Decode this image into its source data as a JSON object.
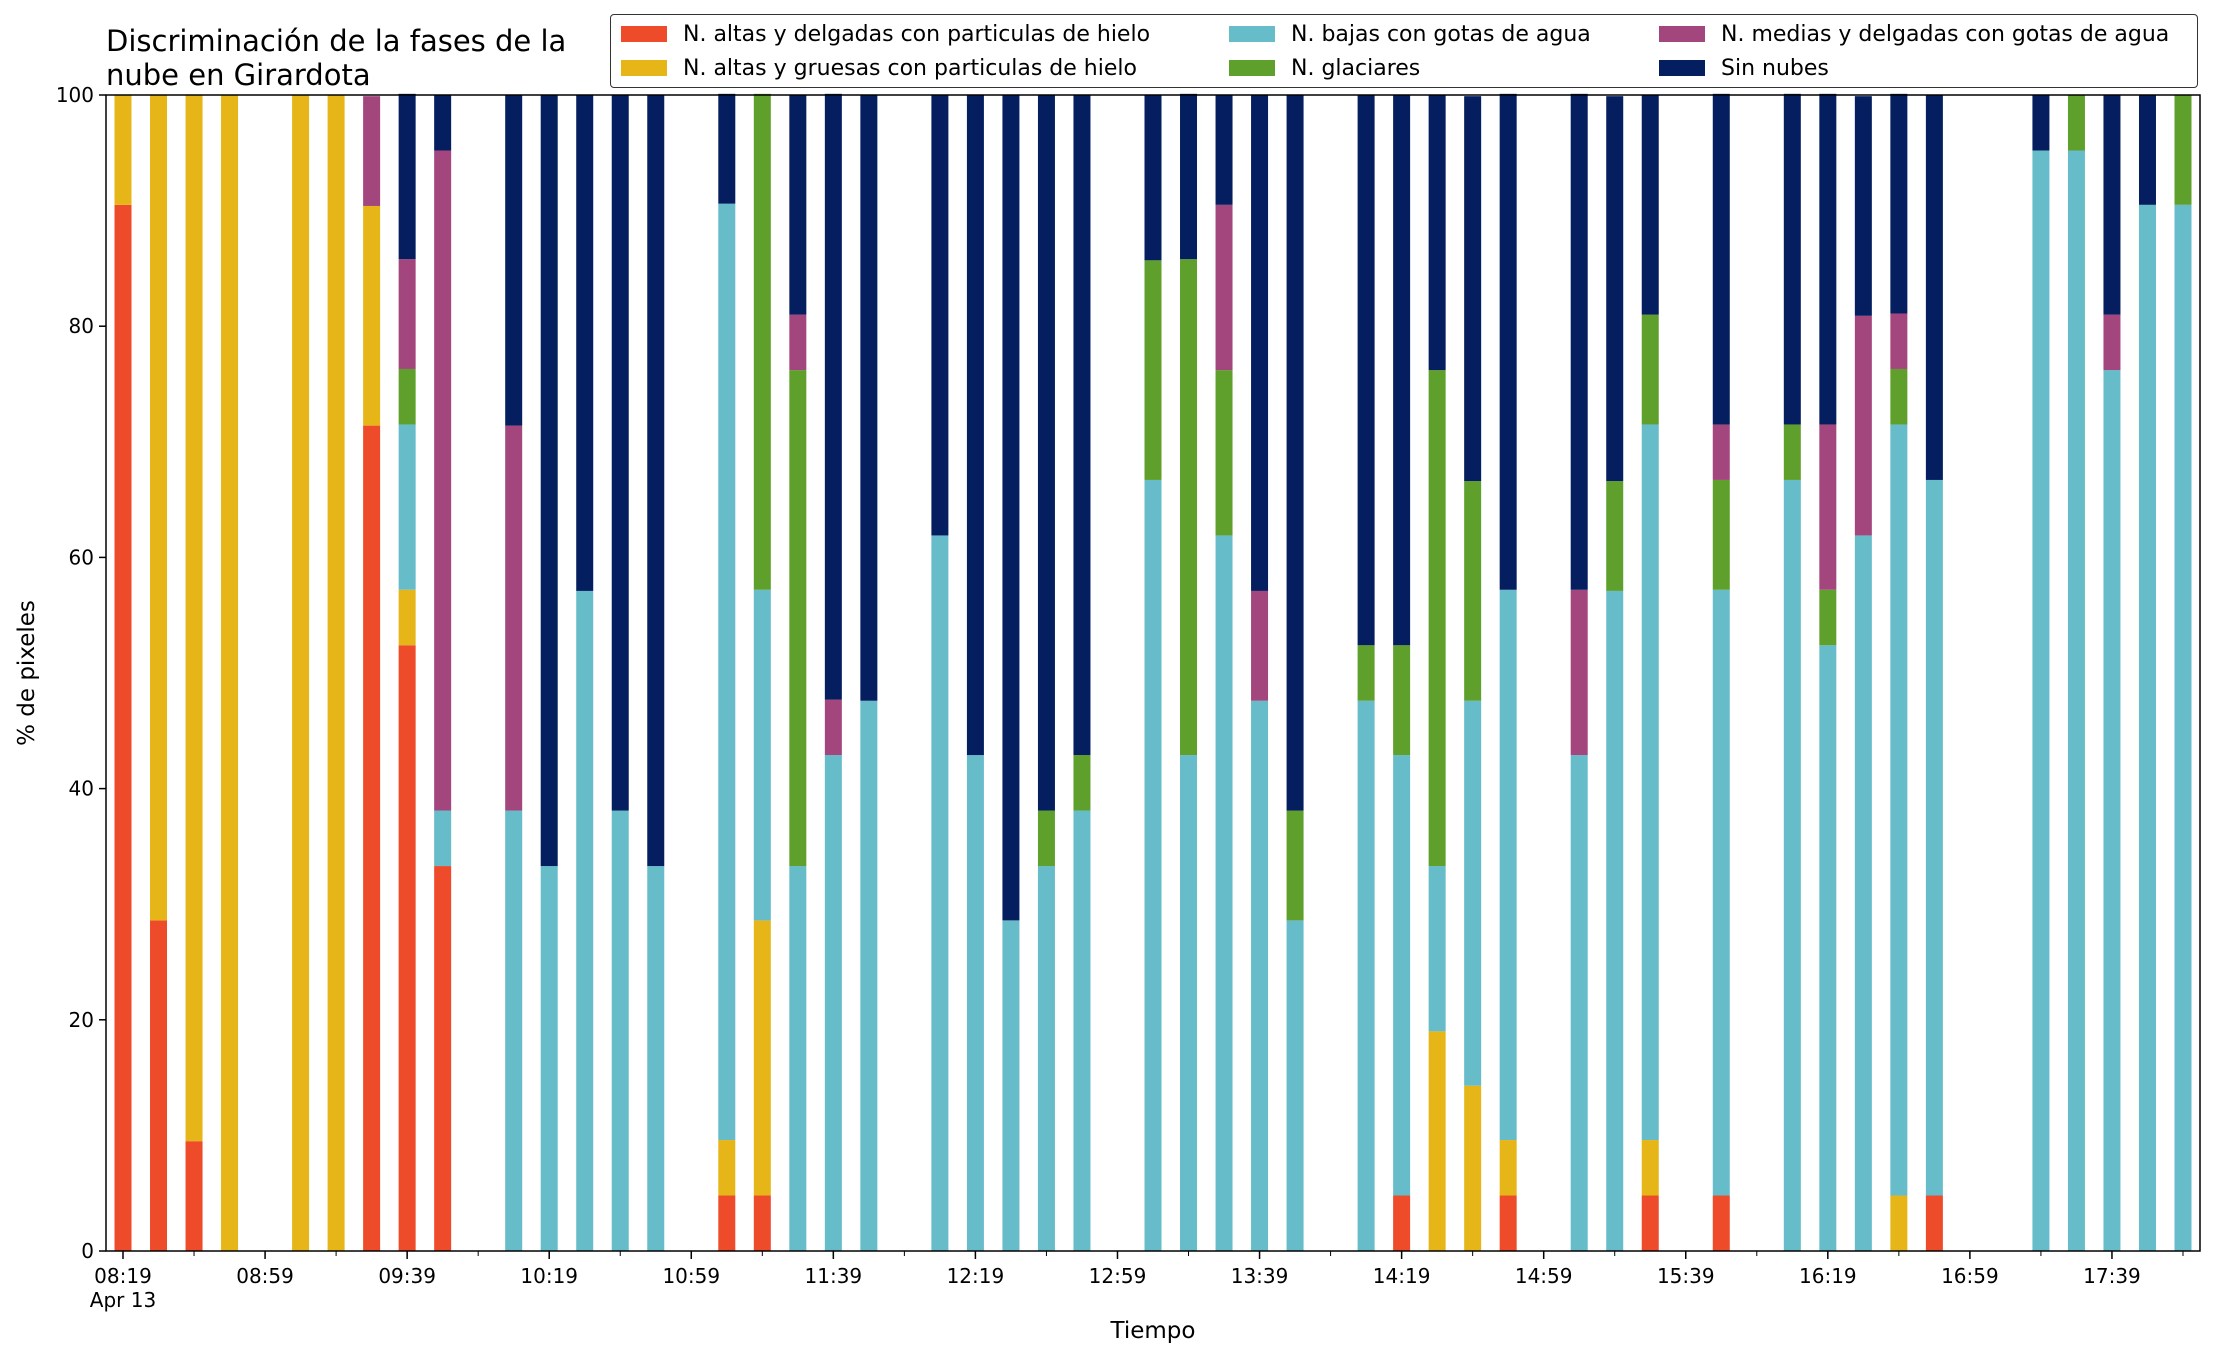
{
  "chart_data": {
    "type": "bar",
    "stacked": true,
    "title": "Discriminación de la fases de la nube en Girardota",
    "xlabel": "Tiempo",
    "ylabel": "% de pixeles",
    "ylim": [
      0,
      100
    ],
    "yticks": [
      "0",
      "20",
      "40",
      "60",
      "80",
      "100"
    ],
    "x_start": "08:19",
    "x_step_minutes": 5,
    "x_count": 117,
    "xtick_labels": [
      {
        "main": "08:19",
        "sub": "Apr 13"
      },
      {
        "main": "08:59"
      },
      {
        "main": "09:39"
      },
      {
        "main": "10:19"
      },
      {
        "main": "10:59"
      },
      {
        "main": "11:39"
      },
      {
        "main": "12:19"
      },
      {
        "main": "12:59"
      },
      {
        "main": "13:39"
      },
      {
        "main": "14:19"
      },
      {
        "main": "14:59"
      },
      {
        "main": "15:39"
      },
      {
        "main": "16:19"
      },
      {
        "main": "16:59"
      },
      {
        "main": "17:39"
      }
    ],
    "legend_position": "top-right",
    "series": [
      {
        "name": "N. altas y delgadas con particulas de hielo",
        "color": "#ee4b2b"
      },
      {
        "name": "N. altas y gruesas con particulas de hielo",
        "color": "#e6b618"
      },
      {
        "name": "N. bajas con gotas de agua",
        "color": "#66bcc9"
      },
      {
        "name": "N. glaciares",
        "color": "#5f9f2c"
      },
      {
        "name": "N. medias y delgadas con gotas de agua",
        "color": "#a4467e"
      },
      {
        "name": "Sin nubes",
        "color": "#041e5f"
      }
    ],
    "series_order_in_legend": [
      0,
      2,
      4,
      1,
      3,
      5
    ],
    "bars": [
      {
        "time": "08:19",
        "values": [
          90.5,
          9.5,
          0,
          0,
          0,
          0
        ]
      },
      {
        "time": "08:29",
        "values": [
          28.6,
          71.4,
          0,
          0,
          0,
          0
        ]
      },
      {
        "time": "08:39",
        "values": [
          9.5,
          90.5,
          0,
          0,
          0,
          0
        ]
      },
      {
        "time": "08:49",
        "values": [
          0,
          100,
          0,
          0,
          0,
          0
        ]
      },
      {
        "time": "09:09",
        "values": [
          0,
          100,
          0,
          0,
          0,
          0
        ]
      },
      {
        "time": "09:19",
        "values": [
          0,
          100,
          0,
          0,
          0,
          0
        ]
      },
      {
        "time": "09:29",
        "values": [
          71.4,
          19.0,
          0,
          0,
          9.5,
          0
        ]
      },
      {
        "time": "09:39",
        "values": [
          52.4,
          4.8,
          14.3,
          4.8,
          9.5,
          14.3
        ]
      },
      {
        "time": "09:49",
        "values": [
          33.3,
          0,
          4.8,
          0,
          57.1,
          4.8
        ]
      },
      {
        "time": "10:09",
        "values": [
          0,
          0,
          38.1,
          0,
          33.3,
          28.6
        ]
      },
      {
        "time": "10:19",
        "values": [
          0,
          0,
          33.3,
          0,
          0,
          66.7
        ]
      },
      {
        "time": "10:29",
        "values": [
          0,
          0,
          57.1,
          0,
          0,
          42.9
        ]
      },
      {
        "time": "10:39",
        "values": [
          0,
          0,
          38.1,
          0,
          0,
          61.9
        ]
      },
      {
        "time": "10:49",
        "values": [
          0,
          0,
          33.3,
          0,
          0,
          66.7
        ]
      },
      {
        "time": "11:09",
        "values": [
          4.8,
          4.8,
          81.0,
          0,
          0,
          9.5
        ]
      },
      {
        "time": "11:19",
        "values": [
          4.8,
          23.8,
          28.6,
          42.9,
          0,
          0
        ]
      },
      {
        "time": "11:29",
        "values": [
          0,
          0,
          33.3,
          42.9,
          4.8,
          19.0
        ]
      },
      {
        "time": "11:39",
        "values": [
          0,
          0,
          42.9,
          0,
          4.8,
          52.4
        ]
      },
      {
        "time": "11:49",
        "values": [
          0,
          0,
          47.6,
          0,
          0,
          52.4
        ]
      },
      {
        "time": "12:09",
        "values": [
          0,
          0,
          61.9,
          0,
          0,
          38.1
        ]
      },
      {
        "time": "12:19",
        "values": [
          0,
          0,
          42.9,
          0,
          0,
          57.1
        ]
      },
      {
        "time": "12:29",
        "values": [
          0,
          0,
          28.6,
          0,
          0,
          71.4
        ]
      },
      {
        "time": "12:39",
        "values": [
          0,
          0,
          33.3,
          4.8,
          0,
          61.9
        ]
      },
      {
        "time": "12:49",
        "values": [
          0,
          0,
          38.1,
          4.8,
          0,
          57.1
        ]
      },
      {
        "time": "13:09",
        "values": [
          0,
          0,
          66.7,
          19.0,
          0,
          14.3
        ]
      },
      {
        "time": "13:19",
        "values": [
          0,
          0,
          42.9,
          42.9,
          0,
          14.3
        ]
      },
      {
        "time": "13:29",
        "values": [
          0,
          0,
          61.9,
          14.3,
          14.3,
          9.5
        ]
      },
      {
        "time": "13:39",
        "values": [
          0,
          0,
          47.6,
          0,
          9.5,
          42.9
        ]
      },
      {
        "time": "13:49",
        "values": [
          0,
          0,
          28.6,
          9.5,
          0,
          61.9
        ]
      },
      {
        "time": "14:09",
        "values": [
          0,
          0,
          47.6,
          4.8,
          0,
          47.6
        ]
      },
      {
        "time": "14:19",
        "values": [
          4.8,
          0,
          38.1,
          9.5,
          0,
          47.6
        ]
      },
      {
        "time": "14:29",
        "values": [
          0,
          19.0,
          14.3,
          42.9,
          0,
          23.8
        ]
      },
      {
        "time": "14:39",
        "values": [
          0,
          14.3,
          33.3,
          19.0,
          0,
          33.3
        ]
      },
      {
        "time": "14:49",
        "values": [
          4.8,
          4.8,
          47.6,
          0,
          0,
          42.9
        ]
      },
      {
        "time": "15:09",
        "values": [
          0,
          0,
          42.9,
          0,
          14.3,
          42.9
        ]
      },
      {
        "time": "15:19",
        "values": [
          0,
          0,
          57.1,
          9.5,
          0,
          33.3
        ]
      },
      {
        "time": "15:29",
        "values": [
          4.8,
          4.8,
          61.9,
          9.5,
          0,
          19.0
        ]
      },
      {
        "time": "15:49",
        "values": [
          4.8,
          0,
          52.4,
          9.5,
          4.8,
          28.6
        ]
      },
      {
        "time": "16:09",
        "values": [
          0,
          0,
          66.7,
          4.8,
          0,
          28.6
        ]
      },
      {
        "time": "16:19",
        "values": [
          0,
          0,
          52.4,
          4.8,
          14.3,
          28.6
        ]
      },
      {
        "time": "16:29",
        "values": [
          0,
          0,
          61.9,
          0,
          19.0,
          19.0
        ]
      },
      {
        "time": "16:39",
        "values": [
          0,
          4.8,
          66.7,
          4.8,
          4.8,
          19.0
        ]
      },
      {
        "time": "16:49",
        "values": [
          4.8,
          0,
          61.9,
          0,
          0,
          33.3
        ]
      },
      {
        "time": "17:19",
        "values": [
          0,
          0,
          95.2,
          0,
          0,
          4.8
        ]
      },
      {
        "time": "17:29",
        "values": [
          0,
          0,
          95.2,
          4.8,
          0,
          0
        ]
      },
      {
        "time": "17:39",
        "values": [
          0,
          0,
          76.2,
          0,
          4.8,
          19.0
        ]
      },
      {
        "time": "17:49",
        "values": [
          0,
          0,
          90.5,
          0,
          0,
          9.5
        ]
      },
      {
        "time": "17:59",
        "values": [
          0,
          0,
          90.5,
          9.5,
          0,
          0
        ]
      }
    ]
  }
}
